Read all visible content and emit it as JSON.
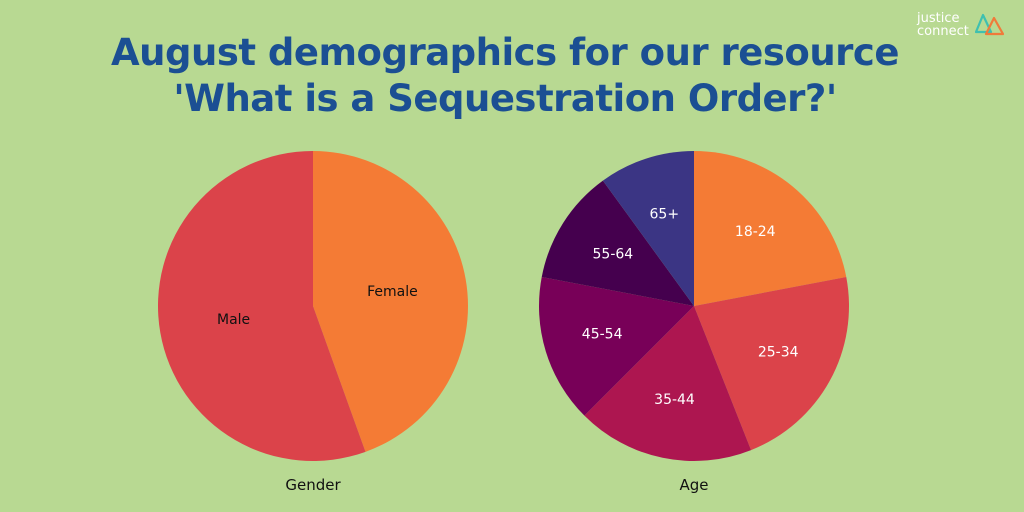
{
  "title_lines": [
    "August demographics for our resource",
    "'What is a Sequestration Order?'"
  ],
  "logo": {
    "line1": "justice",
    "line2": "connect",
    "accent": "#3fc0b0",
    "accent2": "#f07a3a"
  },
  "colors": {
    "background": "#b8d992",
    "title": "#1b4f93",
    "Male": "#db434a",
    "Female": "#f47b35",
    "18-24": "#f47b35",
    "25-34": "#db434a",
    "35-44": "#ad1650",
    "45-54": "#780058",
    "55-64": "#45004e",
    "65+": "#3b3584"
  },
  "chart_data": [
    {
      "type": "pie",
      "title": "Gender",
      "categories": [
        "Female",
        "Male"
      ],
      "values": [
        44.5,
        55.5
      ],
      "label_colors": [
        "#111111",
        "#111111"
      ]
    },
    {
      "type": "pie",
      "title": "Age",
      "categories": [
        "18-24",
        "25-34",
        "35-44",
        "45-54",
        "55-64",
        "65+"
      ],
      "values": [
        22,
        22,
        18.5,
        15.5,
        12,
        10
      ],
      "label_colors": [
        "#ffffff",
        "#ffffff",
        "#ffffff",
        "#ffffff",
        "#ffffff",
        "#ffffff"
      ]
    }
  ]
}
